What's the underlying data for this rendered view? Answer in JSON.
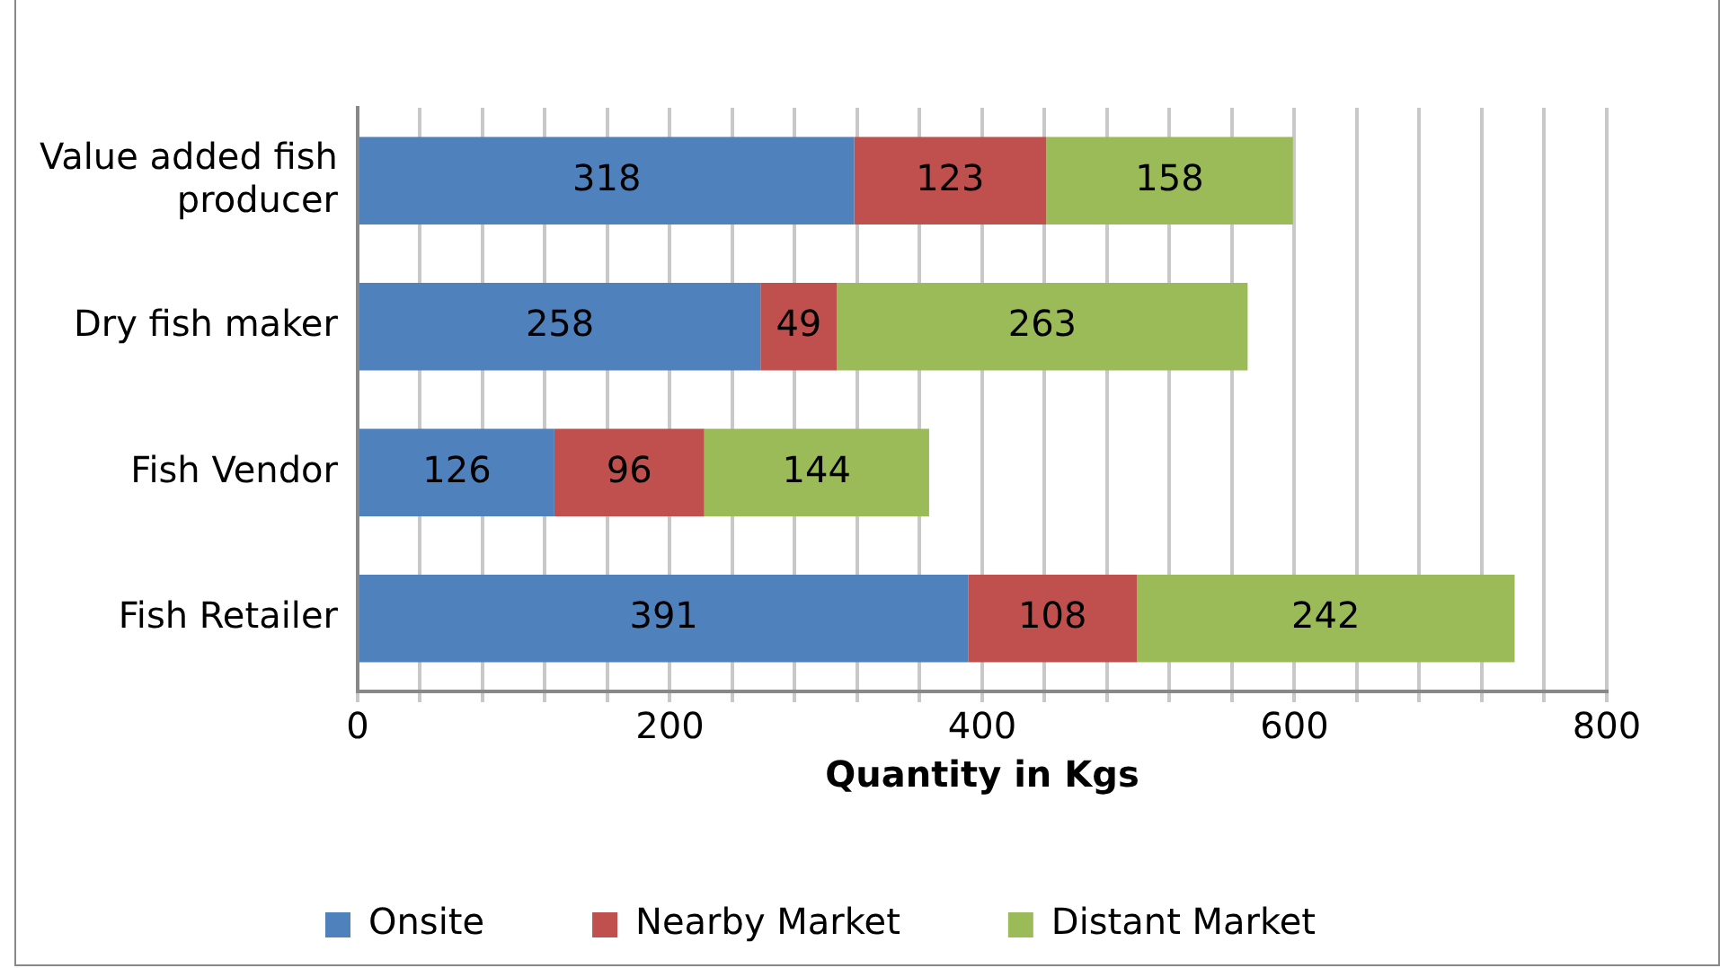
{
  "chart_data": {
    "type": "bar",
    "orientation": "horizontal",
    "stacked": true,
    "xlabel": "Quantity in Kgs",
    "categories": [
      "Value added fish producer",
      "Dry fish maker",
      "Fish Vendor",
      "Fish Retailer"
    ],
    "series": [
      {
        "name": "Onsite",
        "color": "#4f81bd",
        "values": [
          318,
          258,
          126,
          391
        ]
      },
      {
        "name": "Nearby Market",
        "color": "#c0504d",
        "values": [
          123,
          49,
          96,
          108
        ]
      },
      {
        "name": "Distant Market",
        "color": "#9bbb59",
        "values": [
          158,
          263,
          144,
          242
        ]
      }
    ],
    "xlim": [
      0,
      800
    ],
    "xticks": [
      0,
      {
        "value": 40,
        "label": null
      },
      {
        "value": 80,
        "label": null
      },
      {
        "value": 120,
        "label": null
      },
      {
        "value": 160,
        "label": null
      },
      200,
      {
        "value": 240,
        "label": null
      },
      {
        "value": 280,
        "label": null
      },
      {
        "value": 320,
        "label": null
      },
      {
        "value": 360,
        "label": null
      },
      400,
      {
        "value": 440,
        "label": null
      },
      {
        "value": 480,
        "label": null
      },
      {
        "value": 520,
        "label": null
      },
      {
        "value": 560,
        "label": null
      },
      600,
      {
        "value": 640,
        "label": null
      },
      {
        "value": 680,
        "label": null
      },
      {
        "value": 720,
        "label": null
      },
      {
        "value": 760,
        "label": null
      },
      800
    ],
    "grid": "x",
    "legend": "bottom",
    "data_labels": true
  }
}
